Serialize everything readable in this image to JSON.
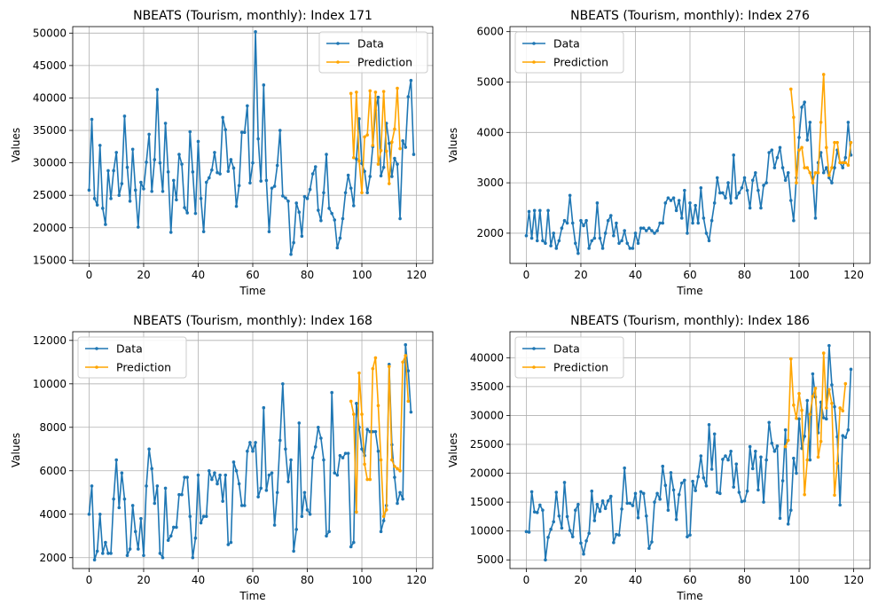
{
  "chart_data": [
    {
      "type": "line",
      "title": "NBEATS (Tourism, monthly): Index 171",
      "xlabel": "Time",
      "ylabel": "Values",
      "xlim": [
        -6,
        126
      ],
      "ylim": [
        14500,
        51000
      ],
      "xticks": [
        0,
        20,
        40,
        60,
        80,
        100,
        120
      ],
      "yticks": [
        15000,
        20000,
        25000,
        30000,
        35000,
        40000,
        45000,
        50000
      ],
      "grid": true,
      "legend_position": "top-right",
      "series": [
        {
          "name": "Data",
          "color": "#1f77b4",
          "x_start": 0,
          "values": [
            25800,
            36700,
            24500,
            23500,
            32700,
            23000,
            20500,
            28800,
            24500,
            28800,
            31600,
            25000,
            26800,
            37200,
            29300,
            24100,
            32100,
            25800,
            20100,
            27000,
            26000,
            30100,
            34400,
            25600,
            30500,
            41300,
            30000,
            25600,
            36100,
            28600,
            19300,
            27300,
            24300,
            31300,
            29800,
            23100,
            22300,
            34800,
            28600,
            22200,
            33300,
            24500,
            19400,
            27000,
            27700,
            28900,
            31600,
            28500,
            28300,
            37000,
            35100,
            28700,
            30500,
            29200,
            23300,
            26500,
            34700,
            34700,
            38800,
            26900,
            30000,
            50200,
            33700,
            27200,
            42000,
            27300,
            19400,
            26100,
            26400,
            29600,
            35000,
            24900,
            24600,
            24100,
            15900,
            17700,
            23800,
            22400,
            18700,
            24800,
            24500,
            25900,
            28300,
            29400,
            22700,
            21100,
            25400,
            31300,
            23000,
            22200,
            21200,
            16900,
            18400,
            21400,
            25400,
            28100,
            26100,
            23400,
            30600,
            36800,
            29900,
            28700,
            25400,
            27900,
            32500,
            38100,
            40100,
            28000,
            29300,
            36100,
            33000,
            27900,
            30700,
            29800,
            21400,
            33400,
            32400,
            40200,
            42700,
            31300
          ]
        },
        {
          "name": "Prediction",
          "color": "#ffa500",
          "x_start": 96,
          "values": [
            40700,
            30800,
            40900,
            30300,
            25400,
            34000,
            34300,
            41100,
            32700,
            40900,
            29800,
            31900,
            41000,
            31800,
            26800,
            33200,
            35200,
            41500,
            32200
          ]
        }
      ]
    },
    {
      "type": "line",
      "title": "NBEATS (Tourism, monthly): Index 276",
      "xlabel": "Time",
      "ylabel": "Values",
      "xlim": [
        -6,
        126
      ],
      "ylim": [
        1400,
        6100
      ],
      "xticks": [
        0,
        20,
        40,
        60,
        80,
        100,
        120
      ],
      "yticks": [
        2000,
        3000,
        4000,
        5000,
        6000
      ],
      "grid": true,
      "legend_position": "top-left",
      "series": [
        {
          "name": "Data",
          "color": "#1f77b4",
          "x_start": 0,
          "values": [
            1950,
            2430,
            1900,
            2450,
            1850,
            2450,
            1850,
            1800,
            2450,
            1750,
            2000,
            1700,
            1850,
            2100,
            2250,
            2200,
            2750,
            2200,
            1800,
            1600,
            2250,
            2150,
            2250,
            1700,
            1850,
            1900,
            2600,
            1900,
            1700,
            2000,
            2250,
            2350,
            1950,
            2200,
            1800,
            1850,
            2050,
            1800,
            1700,
            1700,
            2000,
            1800,
            2100,
            2100,
            2050,
            2100,
            2050,
            2000,
            2050,
            2200,
            2200,
            2600,
            2700,
            2650,
            2700,
            2450,
            2650,
            2300,
            2850,
            2000,
            2600,
            2200,
            2550,
            2200,
            2900,
            2300,
            2000,
            1850,
            2250,
            2600,
            3100,
            2800,
            2800,
            2700,
            3000,
            2600,
            3550,
            2700,
            2800,
            2900,
            3100,
            2850,
            2500,
            3050,
            3200,
            2850,
            2500,
            2950,
            3000,
            3600,
            3650,
            3300,
            3500,
            3700,
            3300,
            3050,
            3200,
            2650,
            2250,
            3100,
            3900,
            4500,
            4600,
            3850,
            4200,
            3100,
            2300,
            3400,
            3600,
            3200,
            3300,
            3100,
            3000,
            3300,
            3650,
            3400,
            3300,
            3500,
            4200,
            3550
          ]
        },
        {
          "name": "Prediction",
          "color": "#ffa500",
          "x_start": 97,
          "values": [
            4860,
            4300,
            3000,
            3650,
            3700,
            3300,
            3300,
            3200,
            3000,
            3200,
            3200,
            4200,
            5150,
            3700,
            3150,
            3300,
            3800,
            3800,
            3400,
            3400,
            3400,
            3350,
            3800
          ]
        }
      ]
    },
    {
      "type": "line",
      "title": "NBEATS (Tourism, monthly): Index 168",
      "xlabel": "Time",
      "ylabel": "Values",
      "xlim": [
        -6,
        126
      ],
      "ylim": [
        1500,
        12400
      ],
      "xticks": [
        0,
        20,
        40,
        60,
        80,
        100,
        120
      ],
      "yticks": [
        2000,
        4000,
        6000,
        8000,
        10000,
        12000
      ],
      "grid": true,
      "legend_position": "top-left",
      "series": [
        {
          "name": "Data",
          "color": "#1f77b4",
          "x_start": 0,
          "values": [
            4000,
            5300,
            1900,
            2300,
            4000,
            2200,
            2700,
            2200,
            2200,
            4700,
            6500,
            4300,
            5900,
            4700,
            2100,
            2400,
            4400,
            3200,
            2400,
            3800,
            2100,
            5300,
            7000,
            6100,
            4500,
            5300,
            2200,
            2000,
            5200,
            2800,
            3000,
            3400,
            3400,
            4900,
            4900,
            5700,
            5700,
            3900,
            2000,
            2900,
            5800,
            3600,
            3900,
            3900,
            6000,
            5600,
            5900,
            5400,
            5800,
            4600,
            5800,
            2600,
            2700,
            6400,
            6000,
            5400,
            4400,
            4400,
            6900,
            7300,
            6900,
            7300,
            4800,
            5200,
            8900,
            5100,
            5800,
            5900,
            3500,
            5000,
            7400,
            10000,
            7000,
            5500,
            6500,
            2300,
            3300,
            8200,
            3900,
            5000,
            4200,
            4000,
            6600,
            7100,
            8000,
            7500,
            6500,
            3000,
            3200,
            9600,
            5900,
            5800,
            6700,
            6600,
            6800,
            6800,
            2500,
            2700,
            9100,
            8000,
            7000,
            6700,
            7900,
            7800,
            7800,
            7800,
            6900,
            3200,
            3700,
            4400,
            10900,
            7200,
            5700,
            4500,
            5000,
            4700,
            11800,
            10600,
            8700
          ]
        },
        {
          "name": "Prediction",
          "color": "#ffa500",
          "x_start": 96,
          "values": [
            9200,
            8600,
            4100,
            10500,
            8600,
            6300,
            5600,
            5600,
            10700,
            11200,
            9000,
            6500,
            3900,
            4200,
            10800,
            6500,
            6200,
            6100,
            6000,
            11000,
            11300,
            9200
          ]
        }
      ]
    },
    {
      "type": "line",
      "title": "NBEATS (Tourism, monthly): Index 186",
      "xlabel": "Time",
      "ylabel": "Values",
      "xlim": [
        -6,
        126
      ],
      "ylim": [
        3500,
        44500
      ],
      "xticks": [
        0,
        20,
        40,
        60,
        80,
        100,
        120
      ],
      "yticks": [
        5000,
        10000,
        15000,
        20000,
        25000,
        30000,
        35000,
        40000
      ],
      "grid": true,
      "legend_position": "top-left",
      "series": [
        {
          "name": "Data",
          "color": "#1f77b4",
          "x_start": 0,
          "values": [
            9900,
            9800,
            16800,
            13300,
            13200,
            14500,
            13600,
            5000,
            8900,
            10300,
            11600,
            16700,
            12600,
            10500,
            18400,
            12500,
            10100,
            9000,
            13600,
            14600,
            7900,
            6000,
            8300,
            9600,
            16900,
            11800,
            14600,
            13400,
            15200,
            13900,
            15200,
            16000,
            8000,
            9400,
            9300,
            13800,
            20900,
            14800,
            14800,
            14400,
            16500,
            12300,
            16800,
            16500,
            12600,
            7000,
            8100,
            15000,
            16500,
            15500,
            21200,
            17900,
            13600,
            20100,
            17100,
            12000,
            16300,
            18300,
            18800,
            9000,
            9300,
            18600,
            17000,
            19400,
            23000,
            19200,
            17800,
            28400,
            20700,
            26800,
            16700,
            16500,
            22400,
            23000,
            22300,
            23800,
            17600,
            21600,
            16700,
            15100,
            15200,
            16900,
            24600,
            20800,
            23800,
            17100,
            22800,
            15000,
            22300,
            28800,
            25200,
            23800,
            24700,
            12200,
            18700,
            27500,
            11200,
            13600,
            22600,
            20000,
            29400,
            24300,
            26400,
            32600,
            22300,
            37200,
            33200,
            27000,
            32300,
            29600,
            29400,
            42100,
            35300,
            31500,
            26300,
            14500,
            26500,
            26200,
            27500,
            38000
          ]
        },
        {
          "name": "Prediction",
          "color": "#ffa500",
          "x_start": 95,
          "values": [
            24600,
            25700,
            39800,
            31800,
            29500,
            33800,
            30900,
            16300,
            22300,
            30200,
            33300,
            34700,
            22800,
            25500,
            40800,
            31300,
            34500,
            32100,
            16200,
            21700,
            31300,
            30800,
            35500
          ]
        }
      ]
    }
  ]
}
